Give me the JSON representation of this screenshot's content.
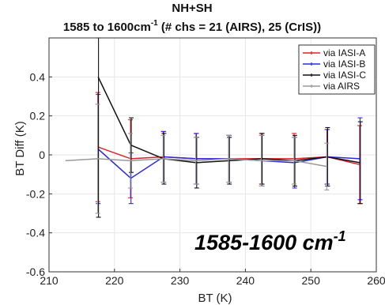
{
  "chart_data": {
    "type": "line",
    "title_line1": "NH+SH",
    "title_line2_main": "1585 to 1600cm",
    "title_line2_sup": "-1",
    "title_line2_rest": " (# chs = 21 (AIRS), 25 (CrIS))",
    "xlabel": "BT (K)",
    "ylabel": "BT Diff (K)",
    "xlim": [
      210,
      260
    ],
    "ylim": [
      -0.6,
      0.6
    ],
    "xticks": [
      210,
      220,
      230,
      240,
      250,
      260
    ],
    "yticks": [
      -0.6,
      -0.4,
      -0.2,
      0,
      0.2,
      0.4
    ],
    "xtick_labels": [
      "210",
      "220",
      "230",
      "240",
      "250",
      "260"
    ],
    "ytick_labels": [
      "-0.6",
      "-0.4",
      "-0.2",
      "0",
      "0.2",
      "0.4"
    ],
    "grid": true,
    "legend_position": "top-right",
    "annotation_main": "1585-1600 cm",
    "annotation_sup": "-1",
    "series": [
      {
        "name": "via IASI-A",
        "color": "#e02020",
        "x": [
          217.5,
          222.5,
          227.5,
          232.5,
          237.5,
          242.5,
          247.5,
          252.5,
          257.5
        ],
        "y": [
          0.04,
          -0.02,
          -0.01,
          -0.02,
          -0.02,
          -0.02,
          -0.02,
          -0.01,
          -0.05
        ],
        "err": [
          0.28,
          0.2,
          0.13,
          0.13,
          0.12,
          0.13,
          0.13,
          0.14,
          0.2
        ]
      },
      {
        "name": "via IASI-B",
        "color": "#2a2ae0",
        "x": [
          217.5,
          222.5,
          227.5,
          232.5,
          237.5,
          242.5,
          247.5,
          252.5,
          257.5
        ],
        "y": [
          0.03,
          -0.12,
          -0.01,
          -0.02,
          -0.02,
          -0.03,
          -0.04,
          -0.01,
          -0.02
        ],
        "err": [
          0.28,
          0.13,
          0.13,
          0.13,
          0.12,
          0.13,
          0.13,
          0.14,
          0.21
        ]
      },
      {
        "name": "via IASI-C",
        "color": "#111111",
        "x": [
          217.5,
          222.5,
          227.5,
          232.5,
          237.5,
          242.5,
          247.5,
          252.5,
          257.5
        ],
        "y": [
          0.4,
          0.05,
          -0.02,
          -0.04,
          -0.03,
          -0.02,
          -0.03,
          -0.01,
          -0.04
        ],
        "err": [
          0.72,
          0.14,
          0.13,
          0.13,
          0.12,
          0.13,
          0.13,
          0.15,
          0.21
        ]
      },
      {
        "name": "via AIRS",
        "color": "#999999",
        "x": [
          212.5,
          217.5,
          222.5,
          227.5,
          232.5,
          237.5,
          242.5,
          247.5,
          252.5
        ],
        "y": [
          -0.03,
          -0.02,
          -0.03,
          -0.02,
          -0.03,
          -0.02,
          -0.03,
          -0.03,
          -0.06
        ],
        "err": [
          0.0,
          0.28,
          0.14,
          0.12,
          0.12,
          0.12,
          0.13,
          0.12,
          0.12
        ]
      }
    ]
  }
}
